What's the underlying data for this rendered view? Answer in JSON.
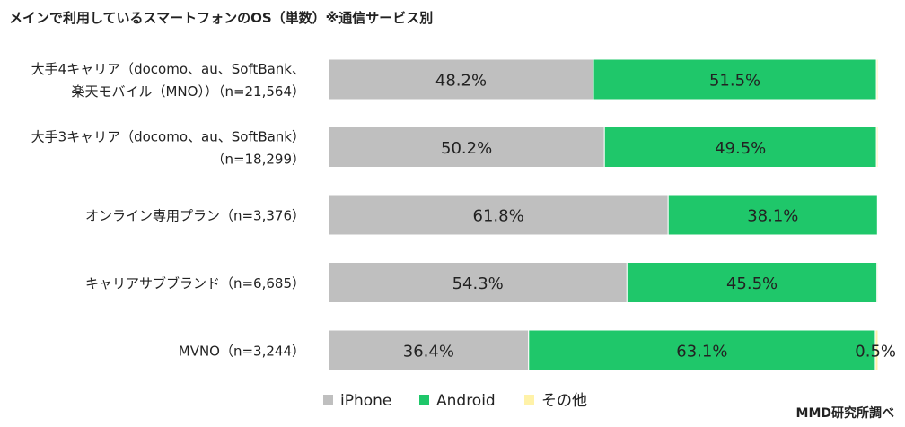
{
  "title": "メインで利用しているスマートフォンのOS（単数）※通信サービス別",
  "source": "MMD研究所調べ",
  "chart_data": {
    "type": "bar",
    "stacked": true,
    "orientation": "horizontal",
    "xlim": [
      0,
      100
    ],
    "grid": false,
    "legend_position": "bottom",
    "categories": [
      [
        "大手4キャリア（docomo、au、SoftBank、",
        "楽天モバイル（MNO））（n=21,564）"
      ],
      [
        "大手3キャリア（docomo、au、SoftBank）",
        "（n=18,299）"
      ],
      [
        "オンライン専用プラン（n=3,376）"
      ],
      [
        "キャリアサブブランド（n=6,685）"
      ],
      [
        "MVNO（n=3,244）"
      ]
    ],
    "series": [
      {
        "name": "iPhone",
        "color": "#bfbfbf",
        "values": [
          48.2,
          50.2,
          61.8,
          54.3,
          36.4
        ],
        "labels": [
          "48.2%",
          "50.2%",
          "61.8%",
          "54.3%",
          "36.4%"
        ]
      },
      {
        "name": "Android",
        "color": "#1fc76a",
        "values": [
          51.5,
          49.5,
          38.1,
          45.5,
          63.1
        ],
        "labels": [
          "51.5%",
          "49.5%",
          "38.1%",
          "45.5%",
          "63.1%"
        ]
      },
      {
        "name": "その他",
        "color": "#fff2a8",
        "values": [
          0.3,
          0.3,
          0.1,
          0.2,
          0.5
        ],
        "labels": [
          "",
          "",
          "",
          "",
          "0.5%"
        ]
      }
    ]
  }
}
